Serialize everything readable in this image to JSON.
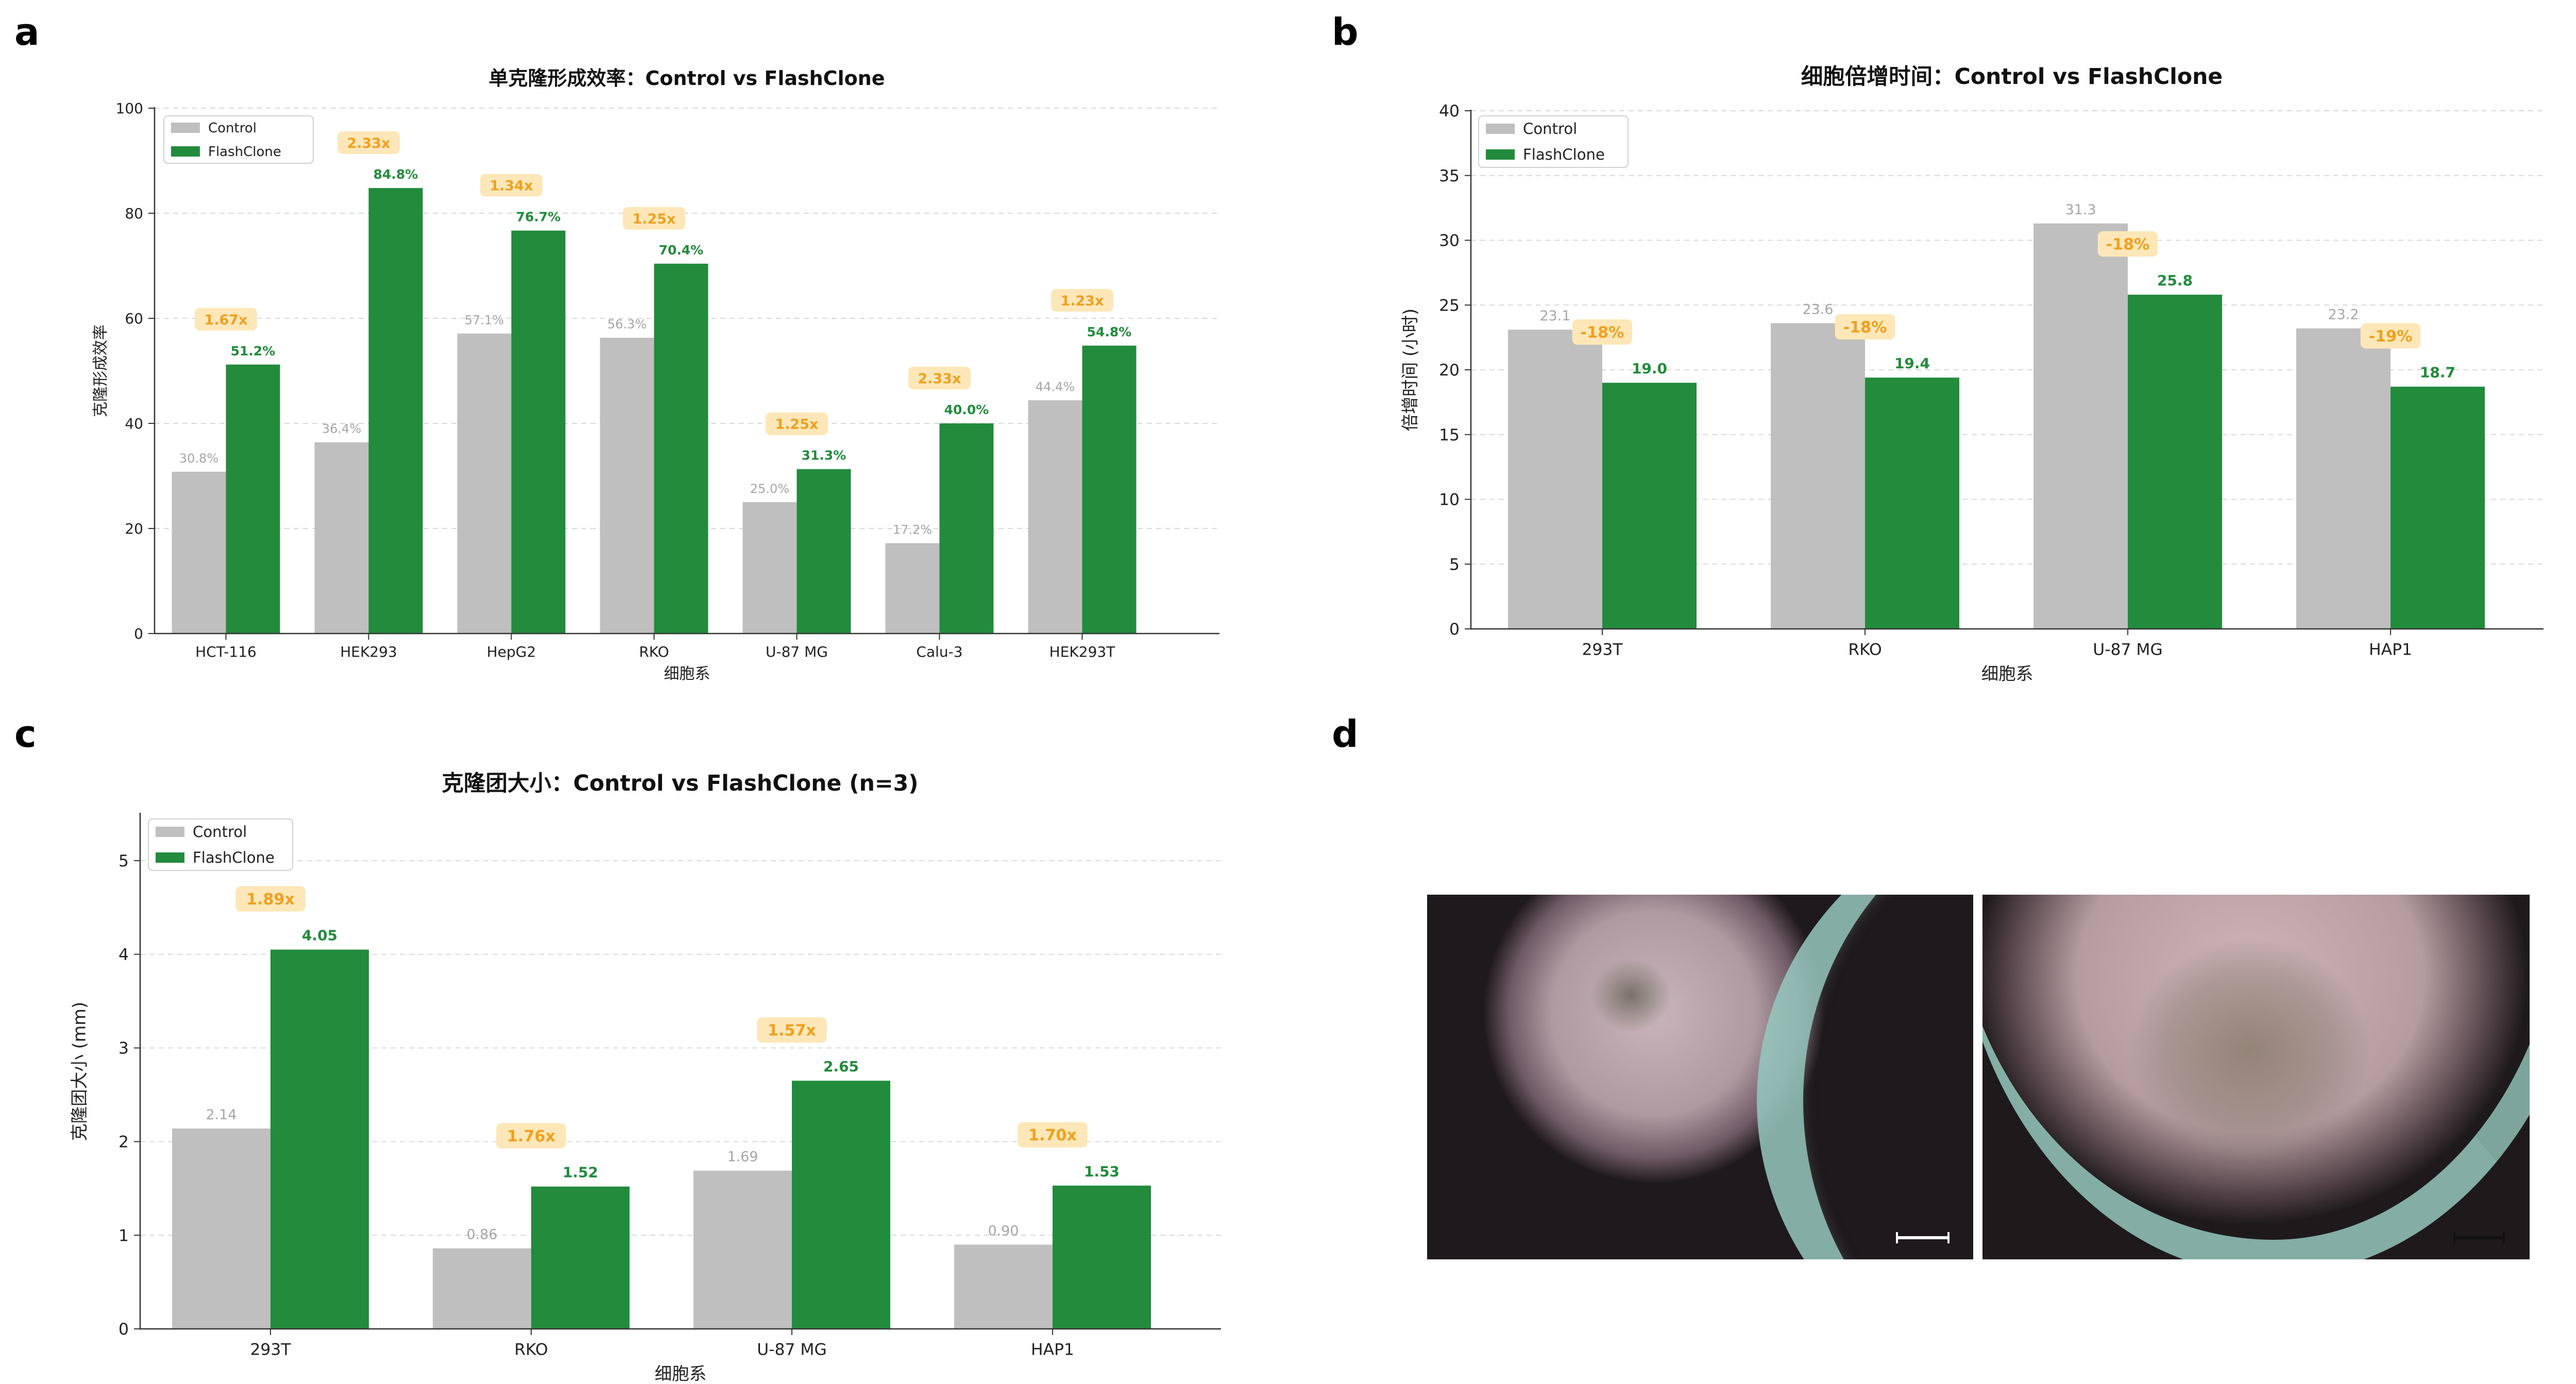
{
  "panels": {
    "a": "a",
    "b": "b",
    "c": "c",
    "d": "d"
  },
  "colors": {
    "control": "#bfbfbf",
    "flashclone": "#228b3c",
    "badge_bg": "#fde7b8",
    "badge_text": "#f0a020",
    "control_label": "#a6a6a6"
  },
  "chart_data": [
    {
      "type": "bar",
      "title": "单克隆形成效率：Control vs FlashClone",
      "xlabel": "细胞系",
      "ylabel": "克隆形成效率",
      "ylim": [
        0,
        100
      ],
      "yticks": [
        0,
        20,
        40,
        60,
        80,
        100
      ],
      "legend": "top-left",
      "grid": "horizontal dashed",
      "categories": [
        "HCT-116",
        "HEK293",
        "HepG2",
        "RKO",
        "U-87 MG",
        "Calu-3",
        "HEK293T"
      ],
      "series": [
        {
          "name": "Control",
          "values": [
            30.8,
            36.4,
            57.1,
            56.3,
            25.0,
            17.2,
            44.4
          ],
          "labels": [
            "30.8%",
            "36.4%",
            "57.1%",
            "56.3%",
            "25.0%",
            "17.2%",
            "44.4%"
          ]
        },
        {
          "name": "FlashClone",
          "values": [
            51.2,
            84.8,
            76.7,
            70.4,
            31.3,
            40.0,
            54.8
          ],
          "labels": [
            "51.2%",
            "84.8%",
            "76.7%",
            "70.4%",
            "31.3%",
            "40.0%",
            "54.8%"
          ]
        }
      ],
      "annotations": [
        "1.67x",
        "2.33x",
        "1.34x",
        "1.25x",
        "1.25x",
        "2.33x",
        "1.23x"
      ]
    },
    {
      "type": "bar",
      "title": "细胞倍增时间：Control vs FlashClone",
      "xlabel": "细胞系",
      "ylabel": "倍增时间 (小时)",
      "ylim": [
        0,
        40
      ],
      "yticks": [
        0,
        5,
        10,
        15,
        20,
        25,
        30,
        35,
        40
      ],
      "legend": "top-left",
      "grid": "horizontal dashed",
      "categories": [
        "293T",
        "RKO",
        "U-87 MG",
        "HAP1"
      ],
      "series": [
        {
          "name": "Control",
          "values": [
            23.1,
            23.6,
            31.3,
            23.2
          ],
          "labels": [
            "23.1",
            "23.6",
            "31.3",
            "23.2"
          ]
        },
        {
          "name": "FlashClone",
          "values": [
            19.0,
            19.4,
            25.8,
            18.7
          ],
          "labels": [
            "19.0",
            "19.4",
            "25.8",
            "18.7"
          ]
        }
      ],
      "annotations": [
        "-18%",
        "-18%",
        "-18%",
        "-19%"
      ]
    },
    {
      "type": "bar",
      "title": "克隆团大小：Control vs FlashClone (n=3)",
      "xlabel": "细胞系",
      "ylabel": "克隆团大小 (mm)",
      "ylim": [
        0,
        5.5
      ],
      "yticks": [
        0,
        1,
        2,
        3,
        4,
        5
      ],
      "legend": "top-left",
      "grid": "horizontal dashed",
      "categories": [
        "293T",
        "RKO",
        "U-87 MG",
        "HAP1"
      ],
      "series": [
        {
          "name": "Control",
          "values": [
            2.14,
            0.86,
            1.69,
            0.9
          ],
          "labels": [
            "2.14",
            "0.86",
            "1.69",
            "0.90"
          ]
        },
        {
          "name": "FlashClone",
          "values": [
            4.05,
            1.52,
            2.65,
            1.53
          ],
          "labels": [
            "4.05",
            "1.52",
            "2.65",
            "1.53"
          ]
        }
      ],
      "annotations": [
        "1.89x",
        "1.76x",
        "1.57x",
        "1.70x"
      ]
    }
  ],
  "images": [
    {
      "name": "control-colony-micrograph",
      "content": "small colony at well edge, brightfield"
    },
    {
      "name": "flashclone-colony-micrograph",
      "content": "large colony at well edge, brightfield"
    }
  ]
}
